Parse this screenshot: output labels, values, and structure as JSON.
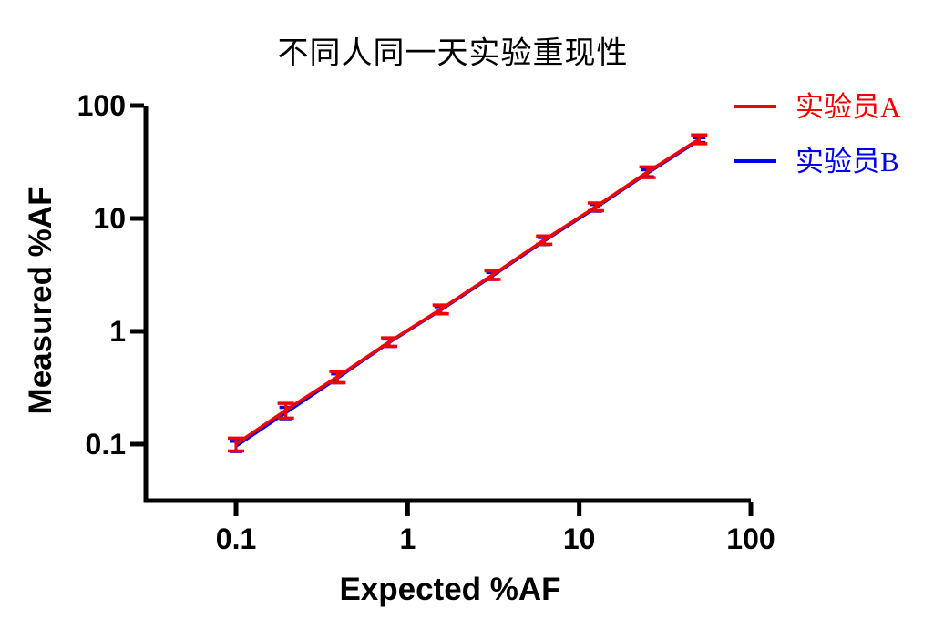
{
  "chart_data": {
    "type": "line",
    "title": "不同人同一天实验重现性",
    "xlabel": "Expected %AF",
    "ylabel": "Measured %AF",
    "x_scale": "log",
    "y_scale": "log",
    "grid": false,
    "legend_position": "top-right",
    "axis_color": "#000000",
    "background_color": "#ffffff",
    "x_range": [
      0.0298,
      100
    ],
    "y_range": [
      0.0316,
      100
    ],
    "x_ticks": [
      0.1,
      1,
      10,
      100
    ],
    "x_tick_labels": [
      "0.1",
      "1",
      "10",
      "100"
    ],
    "y_ticks": [
      0.1,
      1,
      10,
      100
    ],
    "y_tick_labels": [
      "0.1",
      "1",
      "10",
      "100"
    ],
    "x": [
      0.1,
      0.195,
      0.39,
      0.78,
      1.56,
      3.125,
      6.25,
      12.5,
      25,
      50
    ],
    "series": [
      {
        "name": "实验员A",
        "color": "#f40000",
        "values": [
          0.1,
          0.2,
          0.395,
          0.805,
          1.57,
          3.16,
          6.45,
          12.7,
          25.8,
          50.5
        ],
        "errors": [
          0.013,
          0.03,
          0.045,
          0.07,
          0.14,
          0.28,
          0.55,
          1.0,
          2.8,
          4.5
        ]
      },
      {
        "name": "实验员B",
        "color": "#0000f0",
        "values": [
          0.096,
          0.19,
          0.385,
          0.795,
          1.545,
          3.1,
          6.32,
          12.45,
          25.2,
          49.5
        ],
        "errors": [
          0.01,
          0.022,
          0.035,
          0.06,
          0.11,
          0.22,
          0.45,
          0.85,
          1.8,
          2.5
        ]
      }
    ]
  }
}
